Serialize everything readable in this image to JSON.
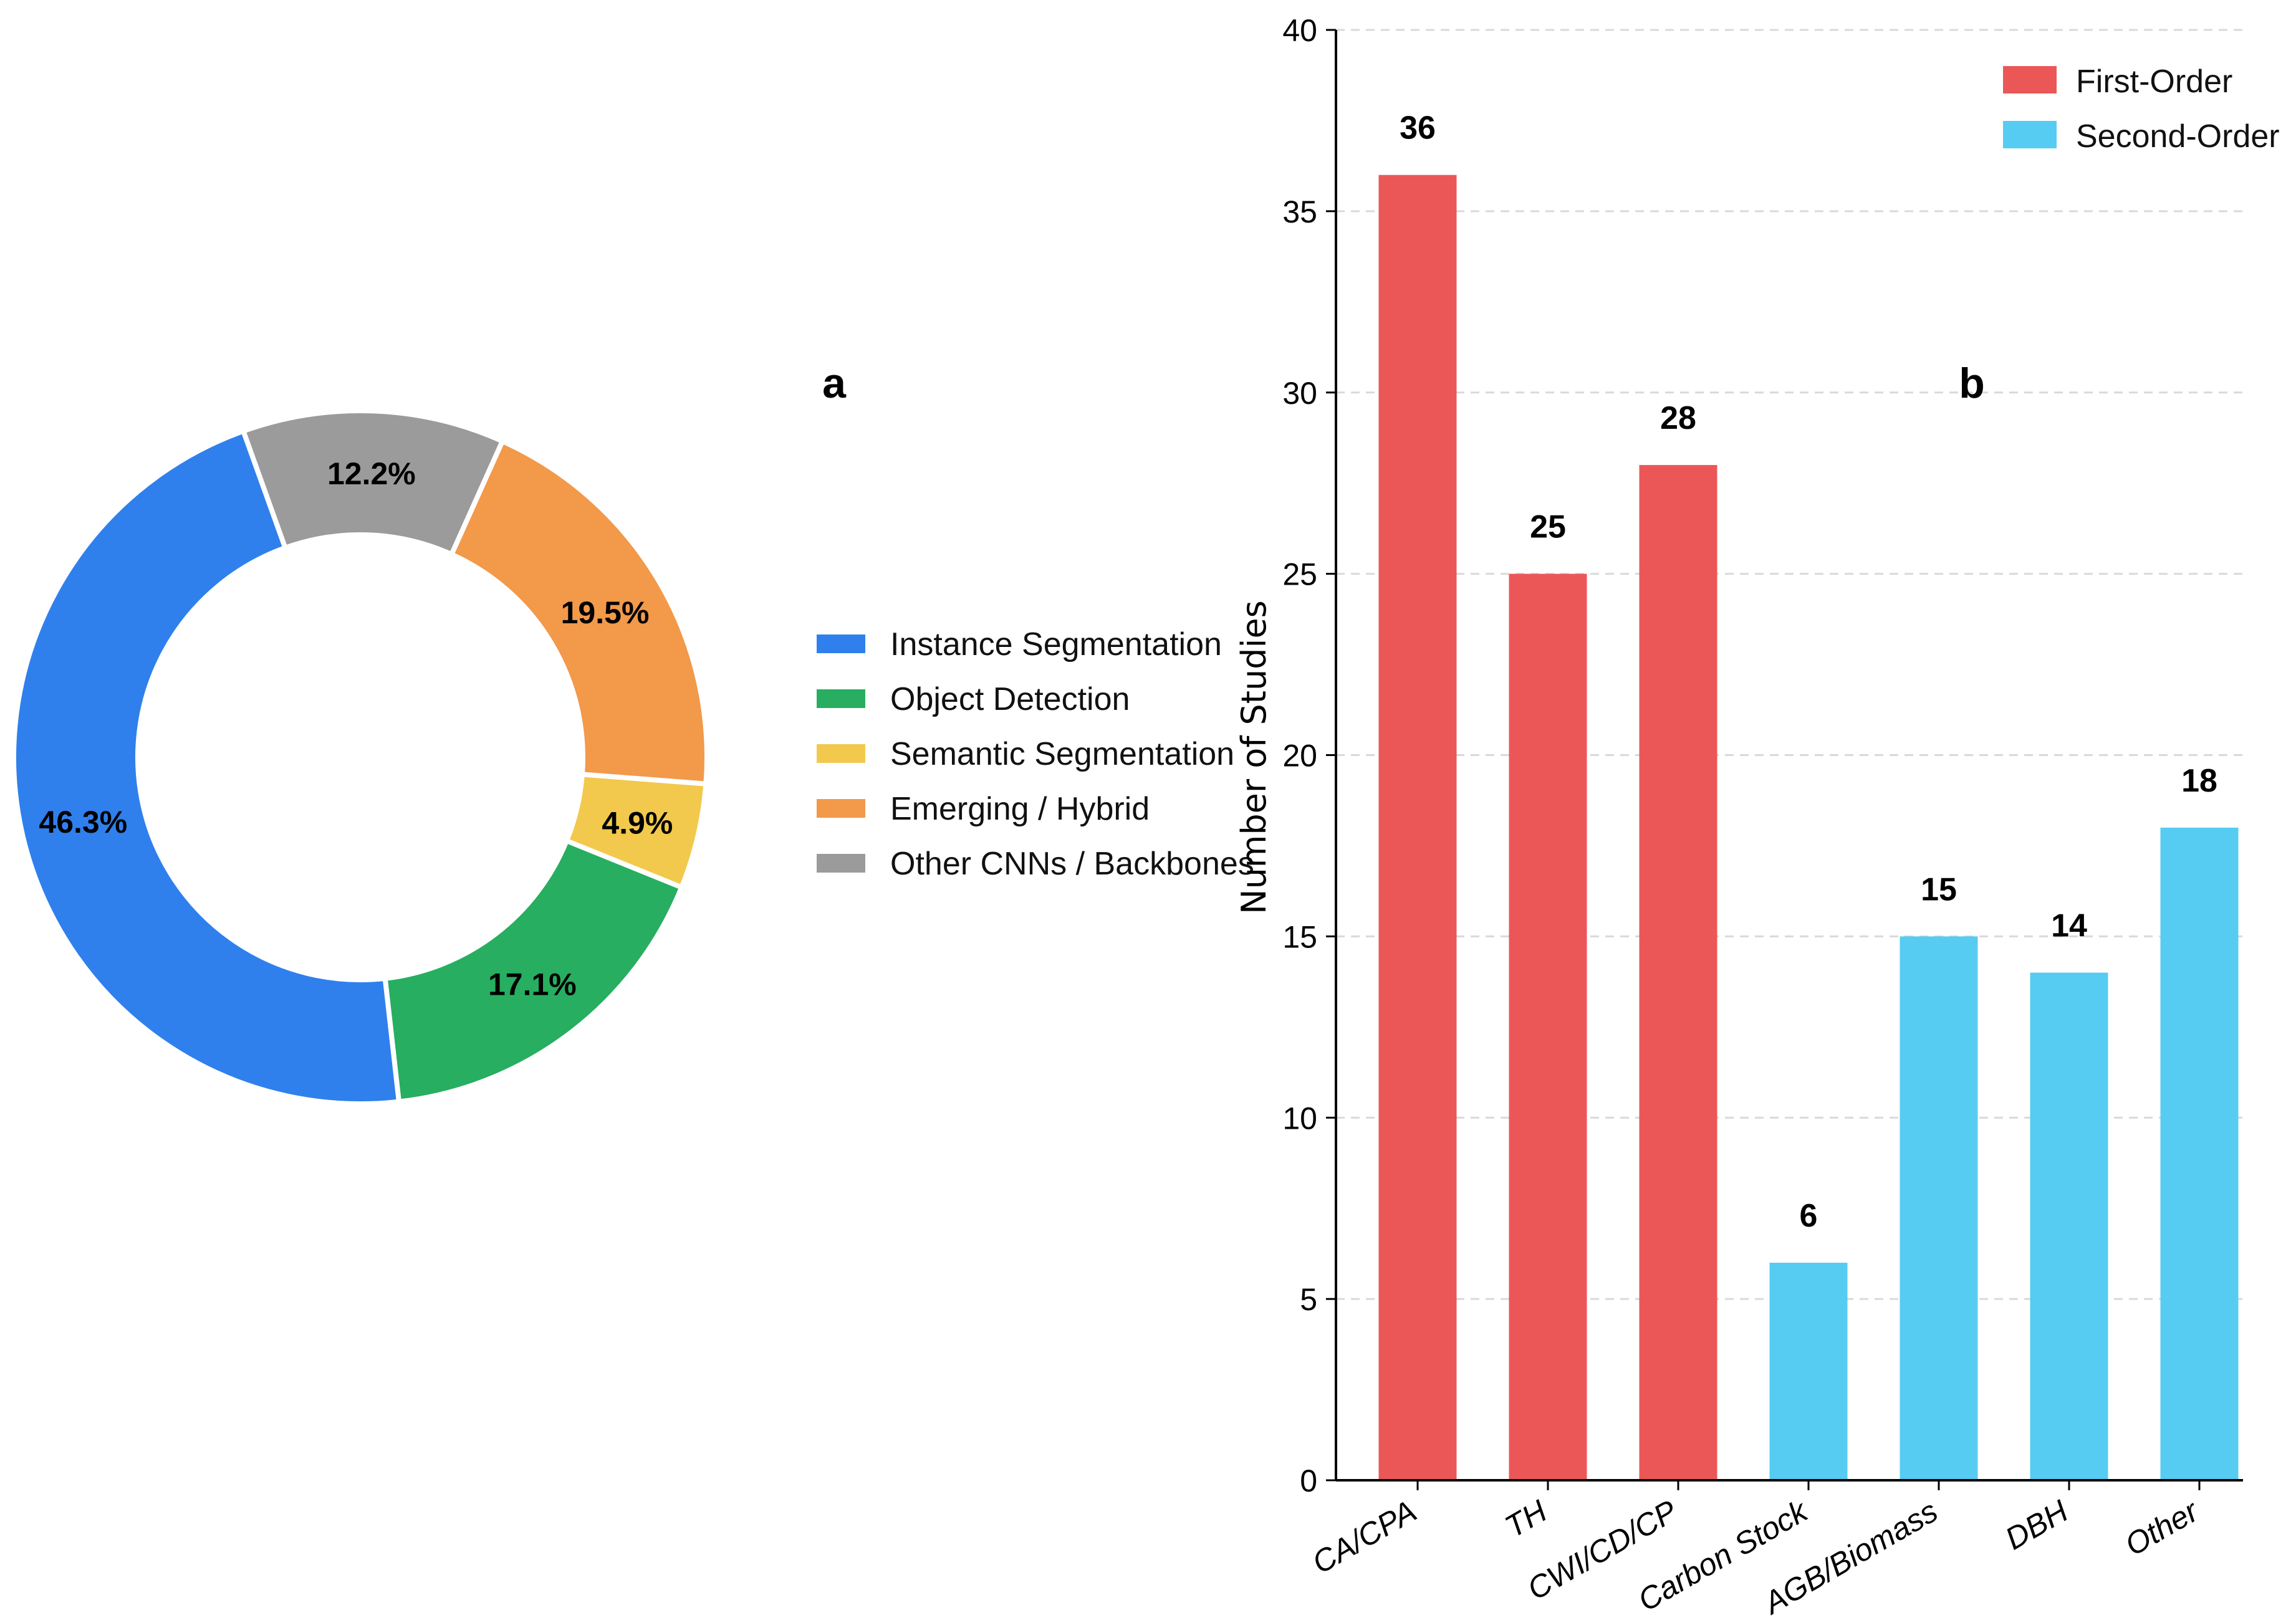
{
  "chart_data": [
    {
      "type": "pie",
      "style": "donut",
      "panel_label": "a",
      "categories": [
        "Instance Segmentation",
        "Object Detection",
        "Semantic Segmentation",
        "Emerging / Hybrid",
        "Other CNNs / Backbones"
      ],
      "values": [
        46.3,
        17.1,
        4.9,
        19.5,
        12.2
      ],
      "value_labels": [
        "46.3%",
        "17.1%",
        "4.9%",
        "19.5%",
        "12.2%"
      ],
      "colors": [
        "#2f80ed",
        "#27ae60",
        "#f2c94c",
        "#f2994a",
        "#9b9b9b"
      ],
      "legend_placement": "right"
    },
    {
      "type": "bar",
      "panel_label": "b",
      "categories": [
        "CA/CPA",
        "TH",
        "CWI/CD/CP",
        "Carbon Stock",
        "AGB/Biomass",
        "DBH",
        "Other"
      ],
      "values": [
        36,
        25,
        28,
        6,
        15,
        14,
        18
      ],
      "value_labels": [
        "36",
        "25",
        "28",
        "6",
        "15",
        "14",
        "18"
      ],
      "series_of_category": [
        "First-Order",
        "First-Order",
        "First-Order",
        "Second-Order",
        "Second-Order",
        "Second-Order",
        "Second-Order"
      ],
      "legend": [
        {
          "name": "First-Order",
          "color": "#eb5757"
        },
        {
          "name": "Second-Order",
          "color": "#56ccf2"
        }
      ],
      "ylabel": "Number of Studies",
      "xlabel": "",
      "ylim": [
        0,
        40
      ],
      "yticks": [
        0,
        5,
        10,
        15,
        20,
        25,
        30,
        35,
        40
      ],
      "ytick_labels": [
        "0",
        "5",
        "10",
        "15",
        "20",
        "25",
        "30",
        "35",
        "40"
      ],
      "grid": "horizontal dashed",
      "legend_placement": "top-right"
    }
  ]
}
